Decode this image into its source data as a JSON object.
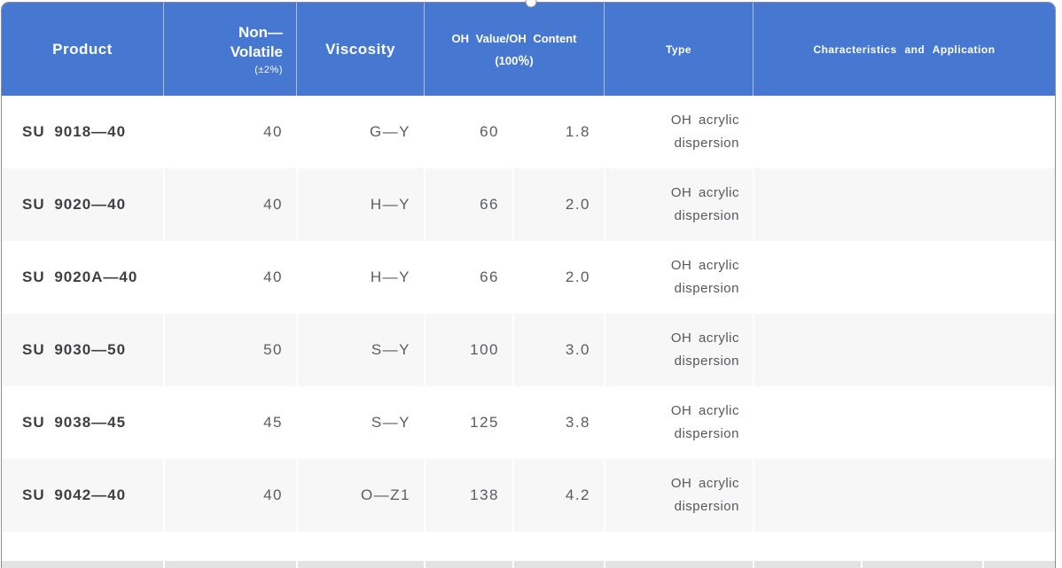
{
  "widget": "product-specification-table",
  "header": {
    "product": "Product",
    "non_volatile_line1": "Non—",
    "non_volatile_line2": "Volatile",
    "non_volatile_note": "(±2%)",
    "viscosity": "Viscosity",
    "oh_line1": "OH Value/OH Content",
    "oh_line2": "(100％)",
    "type": "Type",
    "characteristics": "Characteristics and Application"
  },
  "rows": [
    {
      "product": "SU 9018—40",
      "non_volatile": "40",
      "viscosity": "G—Y",
      "oh_value": "60",
      "oh_content": "1.8",
      "type": "OH acrylic dispersion",
      "characteristics": ""
    },
    {
      "product": "SU 9020—40",
      "non_volatile": "40",
      "viscosity": "H—Y",
      "oh_value": "66",
      "oh_content": "2.0",
      "type": "OH acrylic dispersion",
      "characteristics": ""
    },
    {
      "product": "SU 9020A—40",
      "non_volatile": "40",
      "viscosity": "H—Y",
      "oh_value": "66",
      "oh_content": "2.0",
      "type": "OH acrylic dispersion",
      "characteristics": ""
    },
    {
      "product": "SU 9030—50",
      "non_volatile": "50",
      "viscosity": "S—Y",
      "oh_value": "100",
      "oh_content": "3.0",
      "type": "OH acrylic dispersion",
      "characteristics": ""
    },
    {
      "product": "SU 9038—45",
      "non_volatile": "45",
      "viscosity": "S—Y",
      "oh_value": "125",
      "oh_content": "3.8",
      "type": "OH acrylic dispersion",
      "characteristics": ""
    },
    {
      "product": "SU 9042—40",
      "non_volatile": "40",
      "viscosity": "O—Z1",
      "oh_value": "138",
      "oh_content": "4.2",
      "type": "OH acrylic dispersion",
      "characteristics": ""
    }
  ],
  "colors": {
    "header_bg": "#4678d1",
    "alt_row_bg": "#f7f7f7",
    "next_table_strip": "#e3e3e5",
    "selection_border": "#8a9098"
  }
}
